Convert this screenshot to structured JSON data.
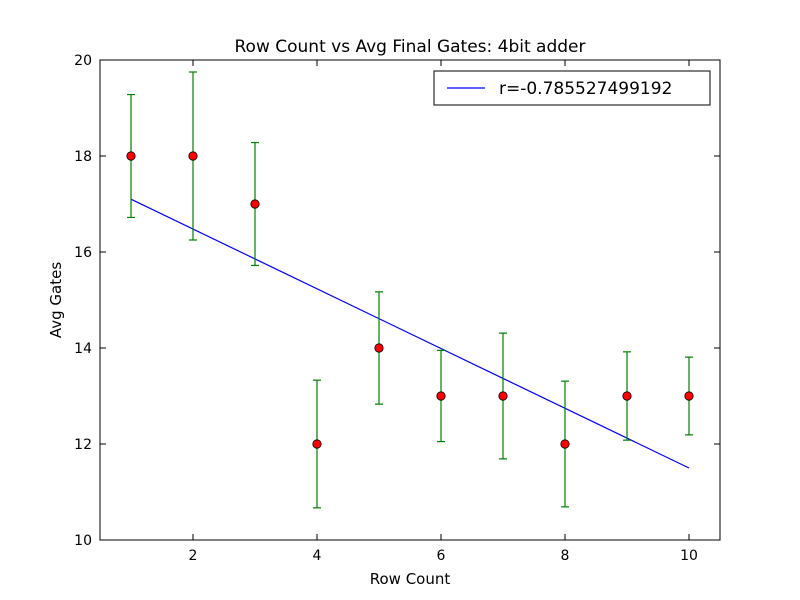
{
  "chart_data": {
    "type": "scatter",
    "title": "Row Count vs Avg Final Gates: 4bit adder",
    "xlabel": "Row Count",
    "ylabel": "Avg Gates",
    "xlim": [
      0.5,
      10.5
    ],
    "ylim": [
      10,
      20
    ],
    "xticks": [
      2,
      4,
      6,
      8,
      10
    ],
    "yticks": [
      10,
      12,
      14,
      16,
      18,
      20
    ],
    "grid": false,
    "legend_position": "top-right",
    "points": {
      "x": [
        1,
        2,
        3,
        4,
        5,
        6,
        7,
        8,
        9,
        10
      ],
      "y": [
        18,
        18,
        17,
        12,
        14,
        13,
        13,
        12,
        13,
        13
      ],
      "yerr": [
        1.28,
        1.75,
        1.28,
        1.33,
        1.17,
        0.95,
        1.31,
        1.31,
        0.92,
        0.81
      ],
      "marker_color": "#ff0000",
      "errorbar_color": "#008000"
    },
    "fit_line": {
      "label": "r=-0.785527499192",
      "x": [
        1,
        10
      ],
      "y": [
        17.1,
        11.5
      ],
      "color": "#0000ff"
    }
  }
}
